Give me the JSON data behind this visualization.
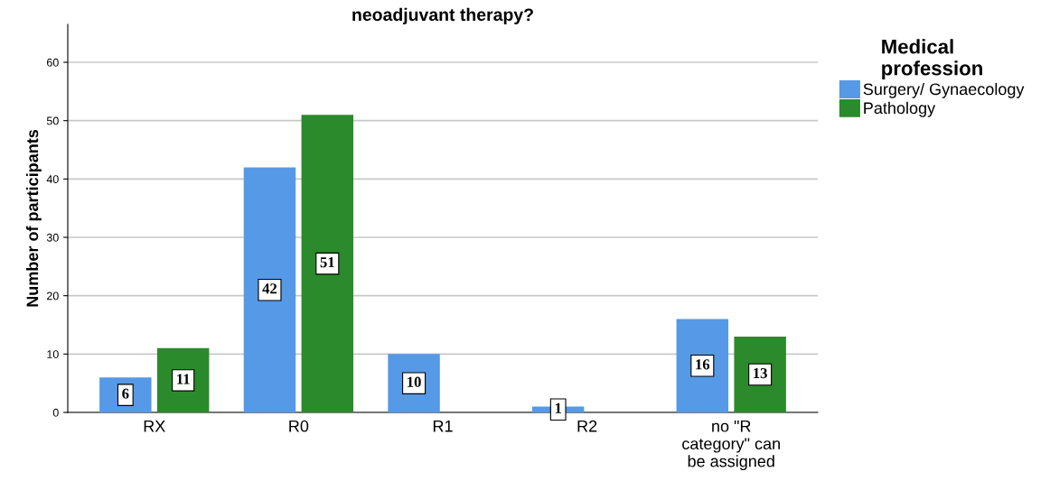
{
  "chart_data": {
    "type": "bar",
    "title": "neoadjuvant therapy?",
    "ylabel": "Number of participants",
    "categories": [
      "RX",
      "R0",
      "R1",
      "R2",
      "no \"R\ncategory\" can\nbe assigned"
    ],
    "series": [
      {
        "name": "Surgery/ Gynaecology",
        "color": "#5699e6",
        "values": [
          6,
          42,
          10,
          1,
          16
        ]
      },
      {
        "name": "Pathology",
        "color": "#2b8a2b",
        "values": [
          11,
          51,
          null,
          null,
          13
        ]
      }
    ],
    "ylim": [
      0,
      66.5
    ],
    "yticks": [
      0,
      10,
      20,
      30,
      40,
      50,
      60
    ],
    "grid": "y",
    "legend": "top right",
    "legend_title": "Medical\nprofession",
    "data_labels": true
  }
}
